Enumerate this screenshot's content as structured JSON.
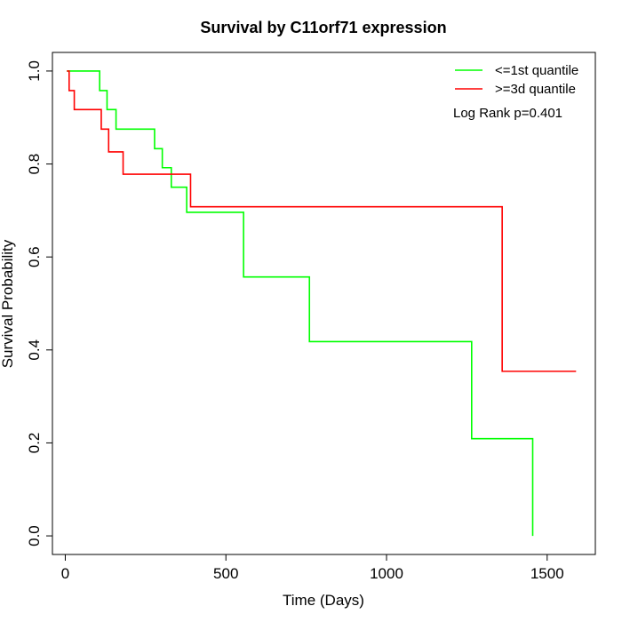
{
  "chart_data": {
    "type": "line",
    "subtype": "kaplan-meier step",
    "title": "Survival by C11orf71 expression",
    "xlabel": "Time (Days)",
    "ylabel": "Survival Probability",
    "xlim": [
      -40,
      1650
    ],
    "ylim": [
      -0.04,
      1.04
    ],
    "xticks": [
      0,
      500,
      1000,
      1500
    ],
    "yticks": [
      0.0,
      0.2,
      0.4,
      0.6,
      0.8,
      1.0
    ],
    "xtick_labels": [
      "0",
      "500",
      "1000",
      "1500"
    ],
    "ytick_labels": [
      "0.0",
      "0.2",
      "0.4",
      "0.6",
      "0.8",
      "1.0"
    ],
    "grid": false,
    "legend_position": "top-right",
    "annotation": "Log Rank p=0.401",
    "series": [
      {
        "name": "<=1st quantile",
        "color": "#00ff00",
        "steps": [
          [
            5,
            1.0
          ],
          [
            107,
            0.958
          ],
          [
            130,
            0.917
          ],
          [
            158,
            0.875
          ],
          [
            278,
            0.833
          ],
          [
            302,
            0.792
          ],
          [
            330,
            0.75
          ],
          [
            378,
            0.696
          ],
          [
            555,
            0.557
          ],
          [
            760,
            0.418
          ],
          [
            1265,
            0.209
          ],
          [
            1455,
            0.0
          ]
        ],
        "end_x": 1455
      },
      {
        "name": ">=3d quantile",
        "color": "#ff0000",
        "steps": [
          [
            5,
            1.0
          ],
          [
            12,
            0.958
          ],
          [
            28,
            0.917
          ],
          [
            112,
            0.875
          ],
          [
            135,
            0.826
          ],
          [
            180,
            0.778
          ],
          [
            390,
            0.708
          ],
          [
            1360,
            0.354
          ]
        ],
        "end_x": 1590
      }
    ]
  }
}
